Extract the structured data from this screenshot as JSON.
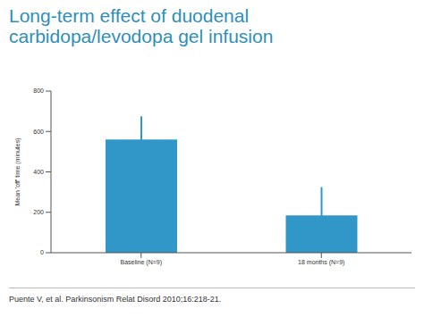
{
  "chart_data": {
    "type": "bar",
    "title": "Long-term effect of duodenal carbidopa/levodopa gel infusion",
    "categories": [
      "Baseline (N=9)",
      "18 months (N=9)"
    ],
    "values": [
      560,
      185
    ],
    "errors": [
      115,
      140
    ],
    "color": "#3197c8",
    "ylabel": "Mean 'off' time (minutes)",
    "ylim": [
      0,
      800
    ],
    "yticks": [
      0,
      200,
      400,
      600,
      800
    ],
    "grid": false,
    "source": "Puente V, et al. Parkinsonism Relat Disord 2010;16:218-21."
  }
}
